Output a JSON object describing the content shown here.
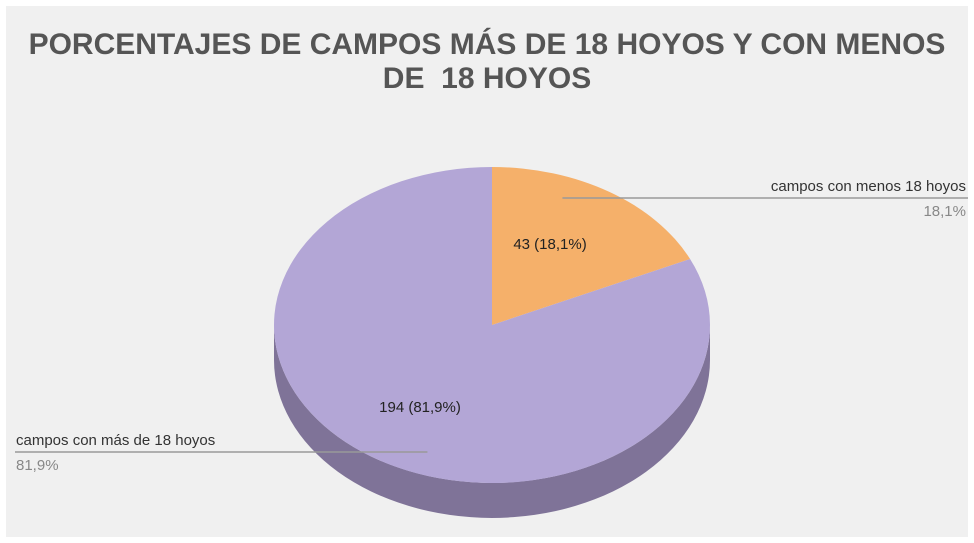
{
  "chart_data": {
    "type": "pie",
    "title": "PORCENTAJES DE CAMPOS MÁS DE 18 HOYOS Y CON MENOS DE  18 HOYOS",
    "categories": [
      "campos con menos 18 hoyos",
      "campos con más de 18 hoyos"
    ],
    "values": [
      43,
      194
    ],
    "value_labels": [
      "43 (18,1%)",
      "194 (81,9%)"
    ],
    "percentages": [
      18.1,
      81.9
    ],
    "percentage_labels": [
      "18,1%",
      "81,9%"
    ],
    "colors": [
      "#f5b06a",
      "#b3a6d6"
    ],
    "side_colors": [
      "#b88552",
      "#7f7398"
    ],
    "three_d": true
  }
}
